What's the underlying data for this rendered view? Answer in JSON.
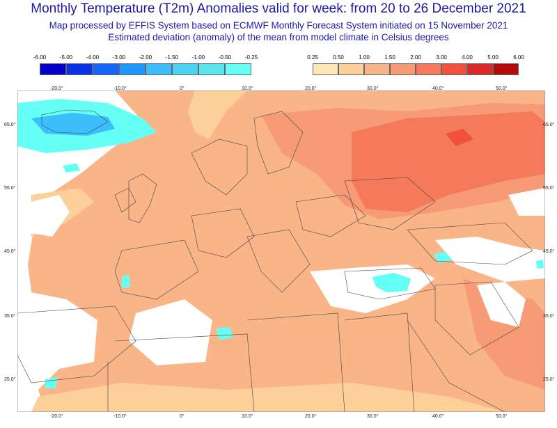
{
  "header": {
    "title": "Monthly Temperature (T2m) Anomalies valid for week: from 20 to 26 December 2021",
    "subtitle1": "Map processed by EFFIS System based on ECMWF Monthly Forecast System initiated on 15 November 2021",
    "subtitle2": "Estimated deviation (anomaly) of the mean from model climate in Celsius degrees"
  },
  "legend_cold": {
    "labels": [
      "-6.00",
      "-5.00",
      "-4.00",
      "-3.00",
      "-2.00",
      "-1.50",
      "-1.00",
      "-0.50",
      "-0.25"
    ],
    "colors": [
      "#0000c8",
      "#0a32e6",
      "#1464fa",
      "#1e96ff",
      "#3cbefa",
      "#4bd2f5",
      "#5ae6f0",
      "#64fff5"
    ]
  },
  "legend_warm": {
    "labels": [
      "0.25",
      "0.50",
      "1.00",
      "1.50",
      "2.00",
      "3.00",
      "4.00",
      "5.00",
      "6.00"
    ],
    "colors": [
      "#ffe6b4",
      "#fdd09a",
      "#f9b487",
      "#f79a76",
      "#f57a5c",
      "#f0503c",
      "#dc2828",
      "#b40a0a"
    ]
  },
  "map": {
    "lon_labels": [
      "-20.0°",
      "-10.0°",
      "0°",
      "10.0°",
      "20.0°",
      "30.0°",
      "40.0°",
      "50.0°"
    ],
    "lat_labels": [
      "65.0°",
      "55.0°",
      "45.0°",
      "35.0°",
      "25.0°"
    ],
    "colors": {
      "ocean": "#ffffff",
      "base": "#f9b487",
      "light": "#fdd09a",
      "mid": "#f79a76",
      "warm": "#f57a5c",
      "hot": "#f0503c",
      "cyan": "#64fff5",
      "cyan_dark": "#3cbefa",
      "border": "#444444"
    }
  }
}
